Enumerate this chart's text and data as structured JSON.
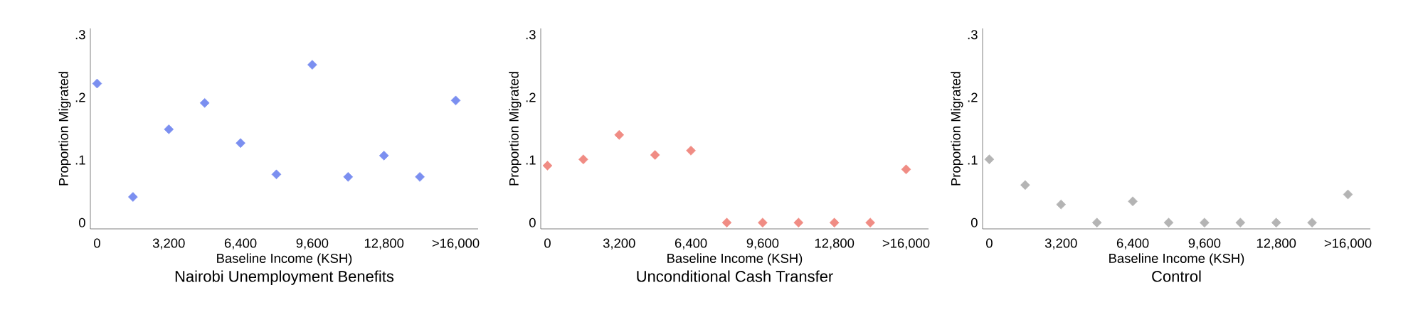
{
  "chart_data": [
    {
      "type": "scatter",
      "title": "Nairobi Unemployment Benefits",
      "xlabel": "Baseline Income (KSH)",
      "ylabel": "Proportion Migrated",
      "marker": "diamond",
      "x": [
        0,
        1600,
        3200,
        4800,
        6400,
        8000,
        9600,
        11200,
        12800,
        14400,
        16000
      ],
      "series": [
        {
          "color": "#7b8ff0",
          "values": [
            0.222,
            0.041,
            0.149,
            0.191,
            0.127,
            0.077,
            0.252,
            0.073,
            0.107,
            0.073,
            0.195
          ]
        }
      ],
      "xlim": [
        -300,
        17000
      ],
      "ylim": [
        -0.01,
        0.31
      ],
      "xticks": [
        0,
        {
          "value": 3200,
          "label": "3,200"
        },
        {
          "value": 6400,
          "label": "6,400"
        },
        {
          "value": 9600,
          "label": "9,600"
        },
        {
          "value": 12800,
          "label": "12,800"
        },
        {
          "value": 16000,
          "label": ">16,000"
        }
      ],
      "yticks": [
        0,
        {
          "value": 0.1,
          "label": ".1"
        },
        {
          "value": 0.2,
          "label": ".2"
        },
        {
          "value": 0.3,
          "label": ".3"
        }
      ]
    },
    {
      "type": "scatter",
      "title": "Unconditional Cash Transfer",
      "xlabel": "Baseline Income (KSH)",
      "ylabel": "Proportion Migrated",
      "marker": "diamond",
      "x": [
        0,
        1600,
        3200,
        4800,
        6400,
        8000,
        9600,
        11200,
        12800,
        14400,
        16000
      ],
      "series": [
        {
          "color": "#f08c84",
          "values": [
            0.091,
            0.101,
            0.14,
            0.108,
            0.115,
            0,
            0,
            0,
            0,
            0,
            0.085
          ]
        }
      ],
      "xlim": [
        -300,
        17000
      ],
      "ylim": [
        -0.01,
        0.31
      ],
      "xticks": [
        0,
        {
          "value": 3200,
          "label": "3,200"
        },
        {
          "value": 6400,
          "label": "6,400"
        },
        {
          "value": 9600,
          "label": "9,600"
        },
        {
          "value": 12800,
          "label": "12,800"
        },
        {
          "value": 16000,
          "label": ">16,000"
        }
      ],
      "yticks": [
        0,
        {
          "value": 0.1,
          "label": ".1"
        },
        {
          "value": 0.2,
          "label": ".2"
        },
        {
          "value": 0.3,
          "label": ".3"
        }
      ]
    },
    {
      "type": "scatter",
      "title": "Control",
      "xlabel": "Baseline Income (KSH)",
      "ylabel": "Proportion Migrated",
      "marker": "diamond",
      "x": [
        0,
        1600,
        3200,
        4800,
        6400,
        8000,
        9600,
        11200,
        12800,
        14400,
        16000
      ],
      "series": [
        {
          "color": "#b4b4b4",
          "values": [
            0.101,
            0.06,
            0.029,
            0,
            0.034,
            0,
            0,
            0,
            0,
            0,
            0.045
          ]
        }
      ],
      "xlim": [
        -300,
        17000
      ],
      "ylim": [
        -0.01,
        0.31
      ],
      "xticks": [
        0,
        {
          "value": 3200,
          "label": "3,200"
        },
        {
          "value": 6400,
          "label": "6,400"
        },
        {
          "value": 9600,
          "label": "9,600"
        },
        {
          "value": 12800,
          "label": "12,800"
        },
        {
          "value": 16000,
          "label": ">16,000"
        }
      ],
      "yticks": [
        0,
        {
          "value": 0.1,
          "label": ".1"
        },
        {
          "value": 0.2,
          "label": ".2"
        },
        {
          "value": 0.3,
          "label": ".3"
        }
      ]
    }
  ]
}
